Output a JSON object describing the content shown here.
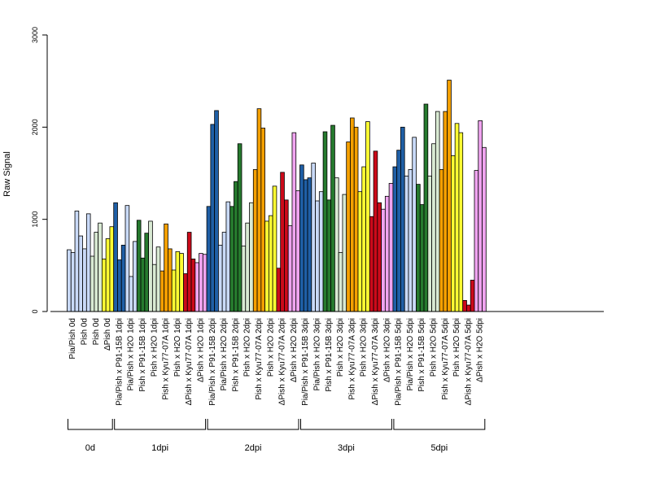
{
  "chart_data": {
    "type": "bar",
    "ylabel": "Raw Signal",
    "ylim": [
      0,
      3000
    ],
    "yticks": [
      0,
      1000,
      2000,
      3000
    ],
    "series_per_category": 3,
    "categories": [
      "Pia/Pish 0d",
      "Pish 0d",
      "Pish 0d",
      "ΔPish 0d",
      "Pia/Pish x P91-15B 1dpi",
      "Pia/Pish x H2O 1dpi",
      "Pish x P91-15B 1dpi",
      "Pish x H2O 1dpi",
      "Pish x Kyu77-07A 1dpi",
      "Pish x H2O 1dpi",
      "ΔPish x Kyu77-07A 1dpi",
      "ΔPish x H2O 1dpi",
      "Pia/Pish x P91-15B 2dpi",
      "Pia/Pish x H2O 2dpi",
      "Pish x P91-15B 2dpi",
      "Pish x H2O 2dpi",
      "Pish x Kyu77-07A 2dpi",
      "Pish x H2O 2dpi",
      "ΔPish x Kyu77-07A 2dpi",
      "ΔPish x H2O 2dpi",
      "Pia/Pish x P91-15B 3dpi",
      "Pia/Pish x H2O 3dpi",
      "Pish x P91-15B 3dpi",
      "Pish x H2O 3dpi",
      "Pish x Kyu77-07A 3dpi",
      "Pish x H2O 3dpi",
      "ΔPish x Kyu77-07A 3dpi",
      "ΔPish x H2O 3dpi",
      "Pia/Pish x P91-15B 5dpi",
      "Pia/Pish x H2O 5dpi",
      "Pish x P91-15B 5dpi",
      "Pish x H2O 5dpi",
      "Pish x Kyu77-07A 5dpi",
      "Pish x H2O 5dpi",
      "ΔPish x Kyu77-07A 5dpi",
      "ΔPish x H2O 5dpi"
    ],
    "values": [
      [
        670,
        640,
        1090
      ],
      [
        820,
        680,
        1060
      ],
      [
        600,
        860,
        960
      ],
      [
        570,
        790,
        920
      ],
      [
        1180,
        560,
        720
      ],
      [
        1150,
        380,
        760
      ],
      [
        990,
        580,
        850
      ],
      [
        980,
        510,
        700
      ],
      [
        440,
        950,
        680
      ],
      [
        450,
        650,
        630
      ],
      [
        410,
        860,
        570
      ],
      [
        530,
        630,
        620
      ],
      [
        1140,
        2030,
        2180
      ],
      [
        720,
        860,
        1190
      ],
      [
        1140,
        1410,
        1820
      ],
      [
        710,
        960,
        1180
      ],
      [
        1540,
        2200,
        1990
      ],
      [
        980,
        1040,
        1360
      ],
      [
        470,
        1510,
        1210
      ],
      [
        930,
        1940,
        1310
      ],
      [
        1590,
        1430,
        1450
      ],
      [
        1610,
        1200,
        1300
      ],
      [
        1950,
        1210,
        2020
      ],
      [
        1450,
        640,
        1270
      ],
      [
        1840,
        2100,
        2000
      ],
      [
        1300,
        1570,
        2060
      ],
      [
        1030,
        1740,
        1180
      ],
      [
        1110,
        1250,
        1390
      ],
      [
        1570,
        1750,
        2000
      ],
      [
        1470,
        1540,
        1890
      ],
      [
        1380,
        1160,
        2250
      ],
      [
        1470,
        1820,
        2170
      ],
      [
        1540,
        2170,
        2510
      ],
      [
        1690,
        2040,
        1940
      ],
      [
        120,
        70,
        340
      ],
      [
        1530,
        2070,
        1780
      ]
    ],
    "bar_colors": [
      "#c9daf8",
      "#c9daf8",
      "#d9ead3",
      "#ffff33",
      "#1f5fa6",
      "#c9daf8",
      "#267a2e",
      "#d9ead3",
      "#f5a000",
      "#ffff33",
      "#cc0a1a",
      "#f0a4f0",
      "#1f5fa6",
      "#c9daf8",
      "#267a2e",
      "#d9ead3",
      "#f5a000",
      "#ffff33",
      "#cc0a1a",
      "#f0a4f0",
      "#1f5fa6",
      "#c9daf8",
      "#267a2e",
      "#d9ead3",
      "#f5a000",
      "#ffff33",
      "#cc0a1a",
      "#f0a4f0",
      "#1f5fa6",
      "#c9daf8",
      "#267a2e",
      "#d9ead3",
      "#f5a000",
      "#ffff33",
      "#cc0a1a",
      "#f0a4f0"
    ],
    "groups": [
      {
        "label": "0d",
        "count": 4
      },
      {
        "label": "1dpi",
        "count": 8
      },
      {
        "label": "2dpi",
        "count": 8
      },
      {
        "label": "3dpi",
        "count": 8
      },
      {
        "label": "5dpi",
        "count": 8
      }
    ],
    "grid": false,
    "legend": "none"
  }
}
